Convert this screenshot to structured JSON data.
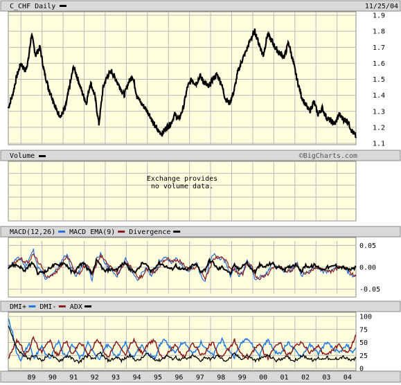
{
  "header": {
    "title": "C_CHF Daily",
    "date": "11/25/04",
    "watermark": "©BigCharts.com"
  },
  "colors": {
    "panel_bg": "#ffffe0",
    "band_bg": "#d9d9d9",
    "grid": "#b8b8b8",
    "price": "#000000",
    "macd": "#2f6fd8",
    "macd_ema": "#8b1a1a",
    "divergence": "#000000",
    "dmi_plus": "#1f7ae0",
    "dmi_minus": "#8b1a1a",
    "adx": "#000000"
  },
  "volume_panel": {
    "label": "Volume",
    "message_line1": "Exchange provides",
    "message_line2": "no volume data."
  },
  "chart_data": [
    {
      "type": "line",
      "title": "C_CHF Daily",
      "x_axis_labels": [
        "89",
        "90",
        "91",
        "92",
        "93",
        "94",
        "95",
        "96",
        "97",
        "98",
        "99",
        "00",
        "01",
        "02",
        "03",
        "04"
      ],
      "xlim": [
        1988.4,
        2004.9
      ],
      "ylim": [
        1.1,
        1.9
      ],
      "y_ticks": [
        "1.1",
        "1.2",
        "1.3",
        "1.4",
        "1.5",
        "1.6",
        "1.7",
        "1.8",
        "1.9"
      ],
      "grid": true,
      "series": [
        {
          "name": "C_CHF",
          "x": [
            1988.4,
            1988.6,
            1988.8,
            1989.0,
            1989.2,
            1989.35,
            1989.5,
            1989.7,
            1989.9,
            1990.1,
            1990.3,
            1990.5,
            1990.7,
            1990.9,
            1991.1,
            1991.3,
            1991.5,
            1991.7,
            1991.9,
            1992.1,
            1992.3,
            1992.5,
            1992.7,
            1992.9,
            1993.1,
            1993.3,
            1993.5,
            1993.7,
            1993.9,
            1994.1,
            1994.3,
            1994.5,
            1994.7,
            1994.9,
            1995.1,
            1995.3,
            1995.5,
            1995.7,
            1995.9,
            1996.1,
            1996.3,
            1996.5,
            1996.7,
            1996.9,
            1997.1,
            1997.3,
            1997.5,
            1997.7,
            1997.9,
            1998.1,
            1998.3,
            1998.5,
            1998.7,
            1998.9,
            1999.1,
            1999.3,
            1999.5,
            1999.7,
            1999.9,
            2000.1,
            2000.3,
            2000.5,
            2000.7,
            2000.9,
            2001.1,
            2001.3,
            2001.5,
            2001.7,
            2001.9,
            2002.1,
            2002.3,
            2002.5,
            2002.7,
            2002.9,
            2003.1,
            2003.3,
            2003.5,
            2003.7,
            2003.9,
            2004.1,
            2004.3,
            2004.5,
            2004.7,
            2004.9
          ],
          "values": [
            1.32,
            1.4,
            1.52,
            1.6,
            1.55,
            1.62,
            1.78,
            1.65,
            1.7,
            1.55,
            1.45,
            1.38,
            1.3,
            1.27,
            1.32,
            1.45,
            1.58,
            1.5,
            1.42,
            1.35,
            1.48,
            1.4,
            1.22,
            1.45,
            1.52,
            1.55,
            1.5,
            1.45,
            1.4,
            1.48,
            1.52,
            1.4,
            1.35,
            1.32,
            1.28,
            1.22,
            1.18,
            1.16,
            1.2,
            1.22,
            1.28,
            1.25,
            1.32,
            1.45,
            1.5,
            1.47,
            1.52,
            1.48,
            1.45,
            1.5,
            1.53,
            1.48,
            1.38,
            1.35,
            1.42,
            1.55,
            1.62,
            1.68,
            1.75,
            1.8,
            1.72,
            1.65,
            1.78,
            1.74,
            1.69,
            1.66,
            1.64,
            1.73,
            1.62,
            1.5,
            1.4,
            1.34,
            1.3,
            1.36,
            1.28,
            1.32,
            1.26,
            1.24,
            1.22,
            1.28,
            1.25,
            1.24,
            1.18,
            1.14
          ]
        }
      ]
    },
    {
      "type": "line",
      "title": "MACD",
      "ylim": [
        -0.06,
        0.06
      ],
      "y_ticks": [
        "0.05",
        "0.00",
        "-0.05"
      ],
      "legend_position": "top-left",
      "series": [
        {
          "name": "MACD(12,26)",
          "values": [
            0.0,
            0.01,
            0.02,
            0.02,
            0.0,
            0.02,
            0.04,
            0.0,
            -0.01,
            -0.03,
            -0.02,
            -0.01,
            0.0,
            0.02,
            0.03,
            0.0,
            -0.02,
            -0.01,
            0.01,
            0.0,
            -0.03,
            0.02,
            0.03,
            0.01,
            0.0,
            -0.01,
            -0.02,
            0.0,
            0.02,
            0.0,
            -0.02,
            -0.03,
            -0.01,
            0.0,
            -0.02,
            -0.01,
            0.01,
            0.02,
            0.02,
            0.01,
            0.02,
            0.01,
            0.0,
            -0.01,
            0.0,
            0.01,
            -0.02,
            -0.03,
            0.01,
            0.03,
            0.02,
            0.02,
            0.01,
            -0.02,
            0.0,
            -0.02,
            -0.01,
            0.02,
            0.0,
            -0.03,
            -0.02,
            -0.02,
            -0.01,
            0.01,
            0.0,
            0.0,
            -0.01,
            -0.01,
            0.0,
            0.01,
            -0.02,
            -0.01,
            -0.01,
            0.0,
            0.0,
            -0.01,
            -0.01,
            -0.01,
            0.0,
            0.0,
            0.0,
            -0.01,
            -0.02,
            -0.02
          ]
        },
        {
          "name": "MACD EMA(9)",
          "values": [
            0.0,
            0.005,
            0.015,
            0.02,
            0.01,
            0.015,
            0.03,
            0.015,
            0.0,
            -0.02,
            -0.02,
            -0.015,
            -0.005,
            0.01,
            0.025,
            0.01,
            -0.01,
            -0.015,
            0.0,
            0.005,
            -0.015,
            0.005,
            0.025,
            0.02,
            0.005,
            -0.005,
            -0.015,
            -0.005,
            0.01,
            0.005,
            -0.01,
            -0.025,
            -0.02,
            -0.005,
            -0.01,
            -0.01,
            0.0,
            0.015,
            0.02,
            0.015,
            0.015,
            0.015,
            0.005,
            -0.005,
            -0.005,
            0.005,
            -0.01,
            -0.025,
            -0.005,
            0.02,
            0.025,
            0.02,
            0.015,
            -0.005,
            -0.005,
            -0.015,
            -0.015,
            0.01,
            0.005,
            -0.02,
            -0.025,
            -0.02,
            -0.015,
            0.0,
            0.0,
            0.0,
            -0.005,
            -0.01,
            -0.005,
            0.005,
            -0.01,
            -0.015,
            -0.01,
            -0.005,
            0.0,
            -0.005,
            -0.01,
            -0.01,
            -0.005,
            0.0,
            0.0,
            -0.005,
            -0.015,
            -0.02
          ]
        },
        {
          "name": "Divergence",
          "values": [
            0.0,
            0.005,
            0.005,
            0.0,
            -0.01,
            0.005,
            0.01,
            -0.015,
            -0.01,
            -0.01,
            0.0,
            0.005,
            0.005,
            0.01,
            0.005,
            -0.01,
            -0.01,
            0.005,
            0.01,
            -0.005,
            -0.015,
            0.015,
            0.005,
            -0.01,
            -0.005,
            -0.005,
            -0.005,
            0.005,
            0.01,
            -0.005,
            -0.01,
            -0.005,
            0.01,
            0.005,
            -0.01,
            0.0,
            0.01,
            0.005,
            0.0,
            -0.005,
            0.005,
            -0.005,
            -0.005,
            -0.005,
            0.005,
            0.005,
            -0.01,
            -0.005,
            0.015,
            0.01,
            -0.005,
            0.0,
            -0.005,
            -0.015,
            0.005,
            -0.005,
            0.005,
            0.01,
            -0.005,
            -0.01,
            0.005,
            0.0,
            0.005,
            0.01,
            0.0,
            0.0,
            -0.005,
            0.0,
            0.005,
            0.005,
            -0.01,
            0.005,
            0.0,
            0.005,
            0.0,
            -0.005,
            0.0,
            0.0,
            0.005,
            0.0,
            0.0,
            -0.005,
            -0.005,
            0.0
          ]
        }
      ]
    },
    {
      "type": "line",
      "title": "DMI",
      "ylim": [
        0,
        100
      ],
      "y_ticks": [
        "100",
        "75",
        "50",
        "25",
        "0"
      ],
      "legend_position": "top-left",
      "series": [
        {
          "name": "DMI+",
          "values": [
            95,
            70,
            28,
            15,
            35,
            48,
            20,
            30,
            42,
            25,
            18,
            40,
            52,
            30,
            22,
            45,
            38,
            20,
            28,
            50,
            35,
            25,
            18,
            40,
            46,
            30,
            22,
            35,
            50,
            28,
            20,
            38,
            45,
            30,
            25,
            20,
            42,
            55,
            48,
            35,
            30,
            45,
            52,
            40,
            28,
            35,
            50,
            42,
            30,
            25,
            45,
            55,
            40,
            32,
            22,
            40,
            52,
            60,
            48,
            35,
            25,
            45,
            55,
            40,
            30,
            28,
            42,
            50,
            38,
            30,
            22,
            35,
            45,
            38,
            28,
            40,
            50,
            42,
            35,
            30,
            38,
            45,
            30,
            40
          ]
        },
        {
          "name": "DMI-",
          "values": [
            20,
            35,
            55,
            45,
            25,
            38,
            60,
            42,
            30,
            48,
            55,
            32,
            25,
            45,
            52,
            28,
            35,
            50,
            42,
            25,
            38,
            55,
            48,
            30,
            22,
            40,
            52,
            35,
            25,
            45,
            55,
            38,
            30,
            42,
            50,
            55,
            30,
            20,
            28,
            40,
            45,
            30,
            22,
            35,
            48,
            40,
            25,
            30,
            45,
            50,
            28,
            20,
            32,
            40,
            55,
            35,
            25,
            18,
            28,
            40,
            50,
            30,
            20,
            35,
            45,
            48,
            32,
            25,
            38,
            45,
            50,
            40,
            30,
            35,
            45,
            30,
            25,
            32,
            40,
            45,
            35,
            28,
            45,
            65
          ]
        },
        {
          "name": "ADX",
          "values": [
            85,
            60,
            40,
            30,
            22,
            18,
            25,
            20,
            15,
            22,
            28,
            20,
            15,
            18,
            25,
            20,
            15,
            12,
            20,
            25,
            18,
            22,
            30,
            20,
            15,
            18,
            22,
            15,
            20,
            25,
            18,
            15,
            20,
            28,
            22,
            18,
            15,
            20,
            25,
            18,
            22,
            15,
            20,
            18,
            25,
            20,
            15,
            22,
            18,
            20,
            25,
            18,
            15,
            20,
            28,
            22,
            18,
            25,
            20,
            15,
            18,
            22,
            25,
            20,
            15,
            18,
            22,
            20,
            15,
            18,
            25,
            22,
            18,
            15,
            20,
            18,
            22,
            15,
            18,
            20,
            22,
            18,
            15,
            20
          ]
        }
      ]
    }
  ]
}
